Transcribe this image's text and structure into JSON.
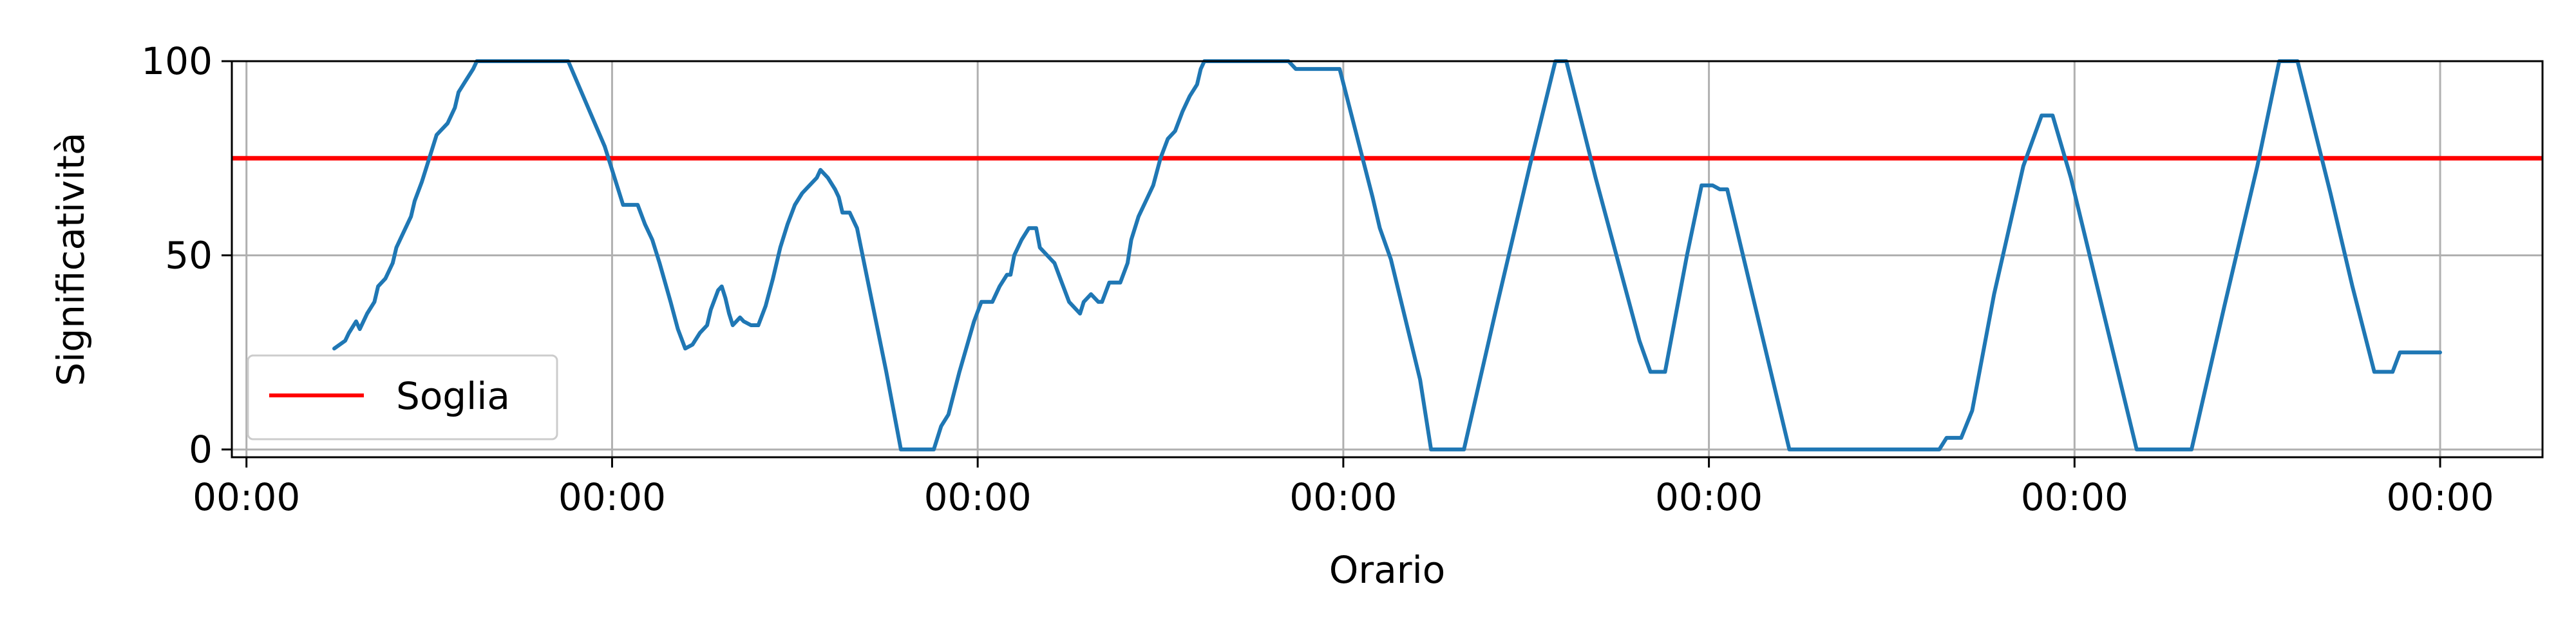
{
  "chart_data": {
    "type": "line",
    "title": "",
    "xlabel": "Orario",
    "ylabel": "Significatività",
    "xlim": [
      -0.04,
      6.28
    ],
    "ylim": [
      -2,
      100
    ],
    "x_tick_values": [
      0,
      1,
      2,
      3,
      4,
      5,
      6
    ],
    "x_tick_labels": [
      "00:00",
      "00:00",
      "00:00",
      "00:00",
      "00:00",
      "00:00",
      "00:00"
    ],
    "y_ticks": [
      0,
      50,
      100
    ],
    "grid": true,
    "legend": {
      "position": "lower-left",
      "entries": [
        {
          "label": "Soglia",
          "color": "#ff0000"
        }
      ]
    },
    "threshold": {
      "name": "Soglia",
      "value": 75,
      "color": "#ff0000"
    },
    "series": [
      {
        "color": "#1f77b4",
        "points": [
          [
            0.24,
            26
          ],
          [
            0.27,
            28
          ],
          [
            0.28,
            30
          ],
          [
            0.3,
            33
          ],
          [
            0.31,
            31
          ],
          [
            0.33,
            35
          ],
          [
            0.35,
            38
          ],
          [
            0.36,
            42
          ],
          [
            0.38,
            44
          ],
          [
            0.4,
            48
          ],
          [
            0.41,
            52
          ],
          [
            0.43,
            56
          ],
          [
            0.45,
            60
          ],
          [
            0.46,
            64
          ],
          [
            0.48,
            69
          ],
          [
            0.5,
            75
          ],
          [
            0.52,
            81
          ],
          [
            0.53,
            82
          ],
          [
            0.55,
            84
          ],
          [
            0.57,
            88
          ],
          [
            0.58,
            92
          ],
          [
            0.6,
            95
          ],
          [
            0.62,
            98
          ],
          [
            0.63,
            100
          ],
          [
            0.88,
            100
          ],
          [
            0.98,
            78
          ],
          [
            1.03,
            63
          ],
          [
            1.07,
            63
          ],
          [
            1.09,
            58
          ],
          [
            1.11,
            54
          ],
          [
            1.13,
            48
          ],
          [
            1.16,
            38
          ],
          [
            1.18,
            31
          ],
          [
            1.2,
            26
          ],
          [
            1.22,
            27
          ],
          [
            1.24,
            30
          ],
          [
            1.26,
            32
          ],
          [
            1.27,
            36
          ],
          [
            1.29,
            41
          ],
          [
            1.3,
            42
          ],
          [
            1.31,
            39
          ],
          [
            1.32,
            35
          ],
          [
            1.33,
            32
          ],
          [
            1.35,
            34
          ],
          [
            1.36,
            33
          ],
          [
            1.38,
            32
          ],
          [
            1.4,
            32
          ],
          [
            1.42,
            37
          ],
          [
            1.44,
            44
          ],
          [
            1.46,
            52
          ],
          [
            1.48,
            58
          ],
          [
            1.5,
            63
          ],
          [
            1.52,
            66
          ],
          [
            1.54,
            68
          ],
          [
            1.56,
            70
          ],
          [
            1.57,
            72
          ],
          [
            1.59,
            70
          ],
          [
            1.61,
            67
          ],
          [
            1.62,
            65
          ],
          [
            1.63,
            61
          ],
          [
            1.65,
            61
          ],
          [
            1.67,
            57
          ],
          [
            1.75,
            20
          ],
          [
            1.79,
            0
          ],
          [
            1.88,
            0
          ],
          [
            1.9,
            6
          ],
          [
            1.92,
            9
          ],
          [
            1.95,
            20
          ],
          [
            1.99,
            33
          ],
          [
            2.01,
            38
          ],
          [
            2.04,
            38
          ],
          [
            2.06,
            42
          ],
          [
            2.08,
            45
          ],
          [
            2.09,
            45
          ],
          [
            2.1,
            50
          ],
          [
            2.12,
            54
          ],
          [
            2.14,
            57
          ],
          [
            2.16,
            57
          ],
          [
            2.17,
            52
          ],
          [
            2.2,
            49
          ],
          [
            2.21,
            48
          ],
          [
            2.23,
            43
          ],
          [
            2.25,
            38
          ],
          [
            2.28,
            35
          ],
          [
            2.29,
            38
          ],
          [
            2.31,
            40
          ],
          [
            2.33,
            38
          ],
          [
            2.34,
            38
          ],
          [
            2.36,
            43
          ],
          [
            2.39,
            43
          ],
          [
            2.41,
            48
          ],
          [
            2.42,
            54
          ],
          [
            2.44,
            60
          ],
          [
            2.46,
            64
          ],
          [
            2.48,
            68
          ],
          [
            2.5,
            75
          ],
          [
            2.52,
            80
          ],
          [
            2.54,
            82
          ],
          [
            2.56,
            87
          ],
          [
            2.58,
            91
          ],
          [
            2.6,
            94
          ],
          [
            2.61,
            98
          ],
          [
            2.62,
            100
          ],
          [
            2.85,
            100
          ],
          [
            2.87,
            98
          ],
          [
            2.99,
            98
          ],
          [
            3.08,
            65
          ],
          [
            3.1,
            57
          ],
          [
            3.13,
            49
          ],
          [
            3.21,
            18
          ],
          [
            3.24,
            0
          ],
          [
            3.33,
            0
          ],
          [
            3.42,
            37
          ],
          [
            3.51,
            73
          ],
          [
            3.58,
            100
          ],
          [
            3.61,
            100
          ],
          [
            3.69,
            70
          ],
          [
            3.77,
            42
          ],
          [
            3.81,
            28
          ],
          [
            3.84,
            20
          ],
          [
            3.88,
            20
          ],
          [
            3.94,
            50
          ],
          [
            3.98,
            68
          ],
          [
            4.01,
            68
          ],
          [
            4.03,
            67
          ],
          [
            4.05,
            67
          ],
          [
            4.22,
            0
          ],
          [
            4.63,
            0
          ],
          [
            4.65,
            3
          ],
          [
            4.69,
            3
          ],
          [
            4.72,
            10
          ],
          [
            4.78,
            40
          ],
          [
            4.86,
            73
          ],
          [
            4.91,
            86
          ],
          [
            4.94,
            86
          ],
          [
            4.99,
            70
          ],
          [
            5.08,
            35
          ],
          [
            5.17,
            0
          ],
          [
            5.32,
            0
          ],
          [
            5.41,
            37
          ],
          [
            5.5,
            73
          ],
          [
            5.56,
            100
          ],
          [
            5.61,
            100
          ],
          [
            5.7,
            66
          ],
          [
            5.76,
            42
          ],
          [
            5.82,
            20
          ],
          [
            5.87,
            20
          ],
          [
            5.89,
            25
          ],
          [
            6.0,
            25
          ]
        ]
      }
    ]
  }
}
